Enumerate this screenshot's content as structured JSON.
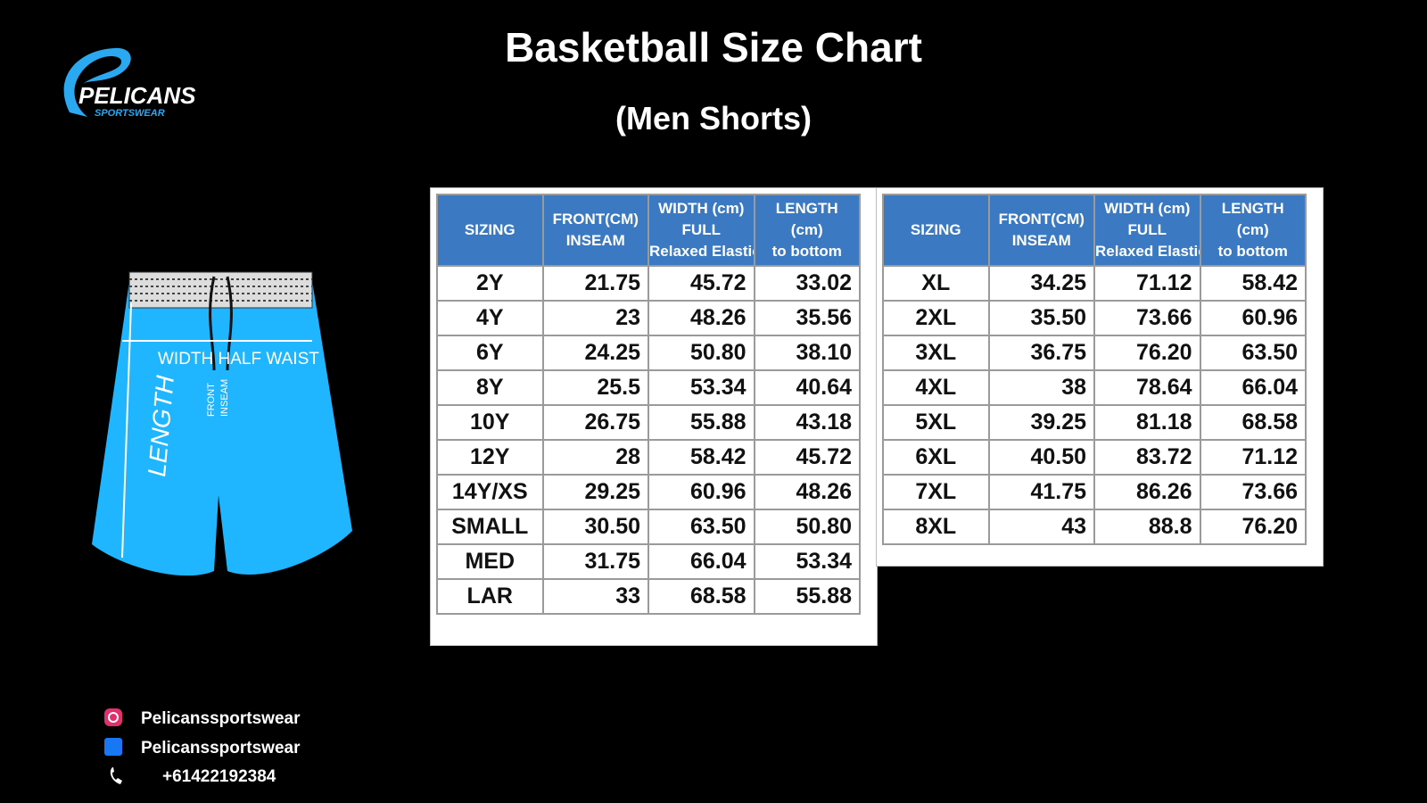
{
  "header": {
    "title": "Basketball Size Chart",
    "subtitle": "(Men Shorts)"
  },
  "logo": {
    "name": "PELICANS",
    "tagline": "SPORTSWEAR"
  },
  "diagram": {
    "width_label": "WIDTH HALF WAIST",
    "length_label": "LENGTH",
    "inseam_label": [
      "FRONT",
      "INSEAM"
    ]
  },
  "tables": [
    {
      "columns": [
        [
          "SIZING"
        ],
        [
          "FRONT(CM)",
          "INSEAM"
        ],
        [
          "WIDTH (cm)",
          "FULL",
          "Relaxed Elastic"
        ],
        [
          "LENGTH",
          "(cm)",
          "to bottom"
        ]
      ],
      "rows": [
        [
          "2Y",
          "21.75",
          "45.72",
          "33.02"
        ],
        [
          "4Y",
          "23",
          "48.26",
          "35.56"
        ],
        [
          "6Y",
          "24.25",
          "50.80",
          "38.10"
        ],
        [
          "8Y",
          "25.5",
          "53.34",
          "40.64"
        ],
        [
          "10Y",
          "26.75",
          "55.88",
          "43.18"
        ],
        [
          "12Y",
          "28",
          "58.42",
          "45.72"
        ],
        [
          "14Y/XS",
          "29.25",
          "60.96",
          "48.26"
        ],
        [
          "SMALL",
          "30.50",
          "63.50",
          "50.80"
        ],
        [
          "MED",
          "31.75",
          "66.04",
          "53.34"
        ],
        [
          "LAR",
          "33",
          "68.58",
          "55.88"
        ]
      ]
    },
    {
      "columns": [
        [
          "SIZING"
        ],
        [
          "FRONT(CM)",
          "INSEAM"
        ],
        [
          "WIDTH (cm)",
          "FULL",
          "Relaxed Elastic"
        ],
        [
          "LENGTH",
          "(cm)",
          "to bottom"
        ]
      ],
      "rows": [
        [
          "XL",
          "34.25",
          "71.12",
          "58.42"
        ],
        [
          "2XL",
          "35.50",
          "73.66",
          "60.96"
        ],
        [
          "3XL",
          "36.75",
          "76.20",
          "63.50"
        ],
        [
          "4XL",
          "38",
          "78.64",
          "66.04"
        ],
        [
          "5XL",
          "39.25",
          "81.18",
          "68.58"
        ],
        [
          "6XL",
          "40.50",
          "83.72",
          "71.12"
        ],
        [
          "7XL",
          "41.75",
          "86.26",
          "73.66"
        ],
        [
          "8XL",
          "43",
          "88.8",
          "76.20"
        ]
      ]
    }
  ],
  "contacts": [
    {
      "text": "Pelicanssportswear"
    },
    {
      "text": "Pelicanssportswear"
    },
    {
      "text": "+61422192384"
    }
  ]
}
